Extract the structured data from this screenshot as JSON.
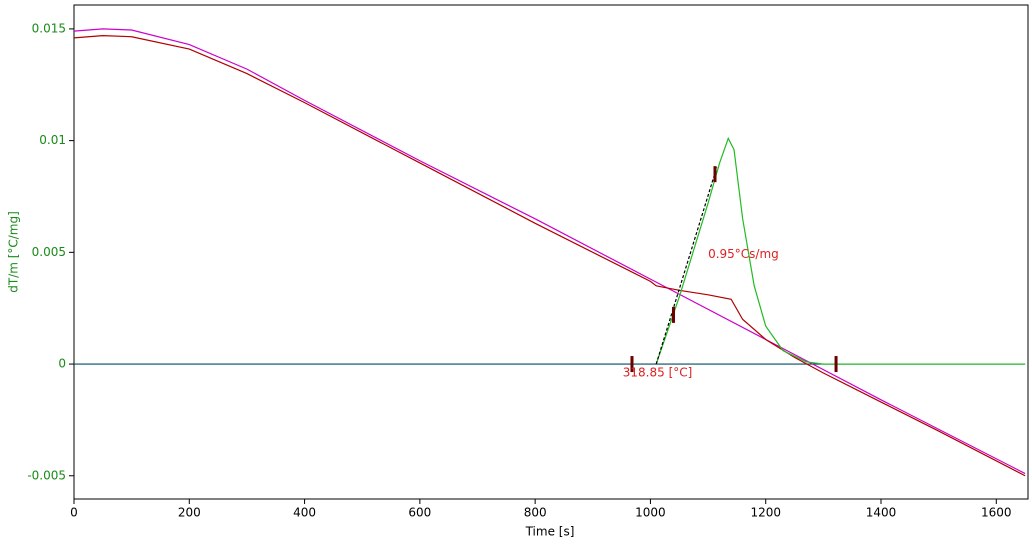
{
  "chart_data": {
    "type": "line",
    "x_label": "Time [s]",
    "y_label": "dT/m  [°C/mg]",
    "xlim": [
      0,
      1655
    ],
    "ylim": [
      -0.00604,
      0.01607
    ],
    "xticks": [
      0,
      200,
      400,
      600,
      800,
      1000,
      1200,
      1400,
      1600
    ],
    "yticks": [
      -0.005,
      0,
      0.005,
      0.01,
      0.015
    ],
    "axis_color": "#1a8a1a",
    "series": [
      {
        "color": "#004d66",
        "x": [
          0,
          1650
        ],
        "values": [
          0,
          0
        ]
      },
      {
        "color": "#cc00cc",
        "x": [
          0,
          50,
          100,
          200,
          300,
          400,
          600,
          800,
          1000,
          1200,
          1400,
          1650
        ],
        "values": [
          0.0149,
          0.015,
          0.01495,
          0.0143,
          0.0132,
          0.0118,
          0.0091,
          0.0065,
          0.0038,
          0.0011,
          -0.0016,
          -0.0049
        ]
      },
      {
        "color": "#b00000",
        "x": [
          0,
          50,
          100,
          200,
          300,
          400,
          600,
          800,
          1000,
          1010,
          1050,
          1100,
          1140,
          1160,
          1200,
          1250,
          1300,
          1400,
          1500,
          1650
        ],
        "values": [
          0.0146,
          0.0147,
          0.01465,
          0.0141,
          0.013,
          0.0117,
          0.009,
          0.0063,
          0.0037,
          0.0035,
          0.0033,
          0.0031,
          0.0029,
          0.002,
          0.0011,
          0.0003,
          -0.0004,
          -0.0017,
          -0.003,
          -0.005
        ]
      },
      {
        "color": "#22bb22",
        "x": [
          1010,
          1050,
          1100,
          1120,
          1135,
          1145,
          1160,
          1180,
          1200,
          1230,
          1270,
          1300,
          1650
        ],
        "values": [
          0,
          0.003,
          0.0072,
          0.009,
          0.0101,
          0.0096,
          0.0065,
          0.0035,
          0.0017,
          0.0006,
          0.0001,
          0,
          0
        ]
      },
      {
        "color": "#000000",
        "dash": true,
        "x": [
          1010,
          1115
        ],
        "values": [
          0,
          0.0088
        ]
      }
    ],
    "markers": {
      "color": "#6b0000",
      "x": [
        968,
        1040,
        1112,
        1322
      ],
      "values": [
        0,
        0.0022,
        0.0085,
        0
      ]
    },
    "annotations": [
      {
        "text": "0.95°Cs/mg",
        "x": 1100,
        "y": 0.0049,
        "color": "#dd2222"
      },
      {
        "text": "318.85 [°C]",
        "x": 952,
        "y": -0.0004,
        "color": "#dd2222"
      }
    ]
  }
}
